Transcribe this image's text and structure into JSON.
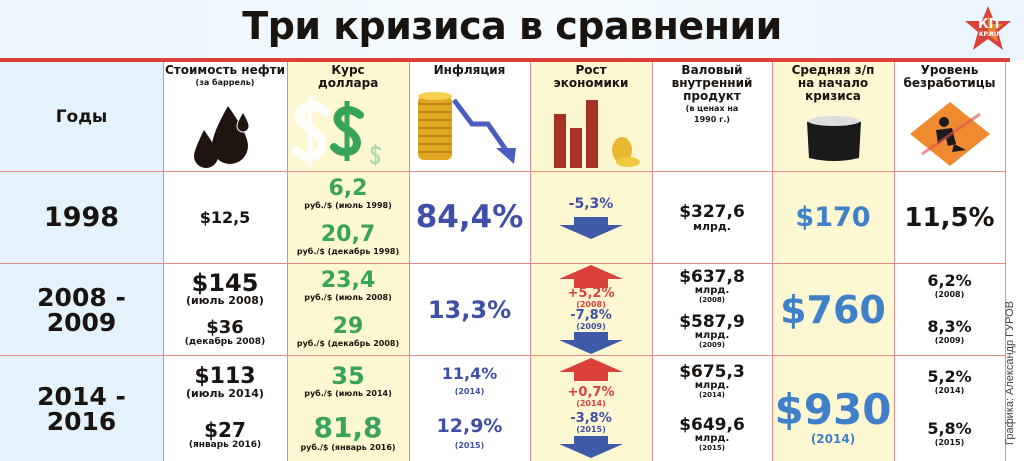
{
  "title": "Три кризиса в сравнении",
  "logo": {
    "main": "КП",
    "sub": "KP.RU"
  },
  "credit": "Графика: Александр ГУРОВ",
  "colors": {
    "accent_red": "#d9413a",
    "green": "#3aa35a",
    "blue": "#3f4fa8",
    "wage_blue": "#3f80c8",
    "year_col_bg": "#e4f2fb",
    "highlight_col_bg": "#fdf8d2"
  },
  "headers": {
    "years": "Годы",
    "oil": {
      "label": "Стоимость нефти",
      "note": "(за баррель)",
      "icon": "oil-drops-icon"
    },
    "dollar": {
      "label": "Курс доллара",
      "icon": "dollar-sign-icon"
    },
    "inflation": {
      "label": "Инфляция",
      "icon": "coins-falling-arrow-icon"
    },
    "growth": {
      "label": "Рост экономики",
      "icon": "bar-chart-coins-icon"
    },
    "gdp": {
      "label": "Валовый внутренний продукт",
      "note": "(в ценах на 1990 г.)"
    },
    "wage": {
      "label": "Средняя з/п на начало кризиса",
      "icon": "wallet-icon"
    },
    "unemployment": {
      "label": "Уровень безработицы",
      "icon": "road-work-sign-icon"
    }
  },
  "rows": [
    {
      "year": "1998",
      "oil": [
        {
          "value": "$12,5",
          "note": ""
        }
      ],
      "dollar": [
        {
          "value": "6,2",
          "note": "руб./$ (июль 1998)"
        },
        {
          "value": "20,7",
          "note": "руб./$ (декабрь 1998)"
        }
      ],
      "inflation": [
        {
          "value": "84,4%",
          "note": ""
        }
      ],
      "growth": [
        {
          "value": "-5,3%",
          "note": "",
          "direction": "down"
        }
      ],
      "gdp": [
        {
          "value": "$327,6",
          "unit": "млрд.",
          "note": ""
        }
      ],
      "wage": {
        "value": "$170",
        "note": ""
      },
      "unemployment": [
        {
          "value": "11,5%",
          "note": ""
        }
      ]
    },
    {
      "year": "2008 - 2009",
      "oil": [
        {
          "value": "$145",
          "note": "(июль 2008)"
        },
        {
          "value": "$36",
          "note": "(декабрь 2008)"
        }
      ],
      "dollar": [
        {
          "value": "23,4",
          "note": "руб./$ (июль 2008)"
        },
        {
          "value": "29",
          "note": "руб./$ (декабрь 2008)"
        }
      ],
      "inflation": [
        {
          "value": "13,3%",
          "note": ""
        }
      ],
      "growth": [
        {
          "value": "+5,2%",
          "note": "(2008)",
          "direction": "up"
        },
        {
          "value": "-7,8%",
          "note": "(2009)",
          "direction": "down"
        }
      ],
      "gdp": [
        {
          "value": "$637,8",
          "unit": "млрд.",
          "note": "(2008)"
        },
        {
          "value": "$587,9",
          "unit": "млрд.",
          "note": "(2009)"
        }
      ],
      "wage": {
        "value": "$760",
        "note": ""
      },
      "unemployment": [
        {
          "value": "6,2%",
          "note": "(2008)"
        },
        {
          "value": "8,3%",
          "note": "(2009)"
        }
      ]
    },
    {
      "year": "2014 - 2016",
      "oil": [
        {
          "value": "$113",
          "note": "(июль 2014)"
        },
        {
          "value": "$27",
          "note": "(январь 2016)"
        }
      ],
      "dollar": [
        {
          "value": "35",
          "note": "руб./$ (июль 2014)"
        },
        {
          "value": "81,8",
          "note": "руб./$ (январь 2016)"
        }
      ],
      "inflation": [
        {
          "value": "11,4%",
          "note": "(2014)"
        },
        {
          "value": "12,9%",
          "note": "(2015)"
        }
      ],
      "growth": [
        {
          "value": "+0,7%",
          "note": "(2014)",
          "direction": "up"
        },
        {
          "value": "-3,8%",
          "note": "(2015)",
          "direction": "down"
        }
      ],
      "gdp": [
        {
          "value": "$675,3",
          "unit": "млрд.",
          "note": "(2014)"
        },
        {
          "value": "$649,6",
          "unit": "млрд.",
          "note": "(2015)"
        }
      ],
      "wage": {
        "value": "$930",
        "note": "(2014)"
      },
      "unemployment": [
        {
          "value": "5,2%",
          "note": "(2014)"
        },
        {
          "value": "5,8%",
          "note": "(2015)"
        }
      ]
    }
  ]
}
